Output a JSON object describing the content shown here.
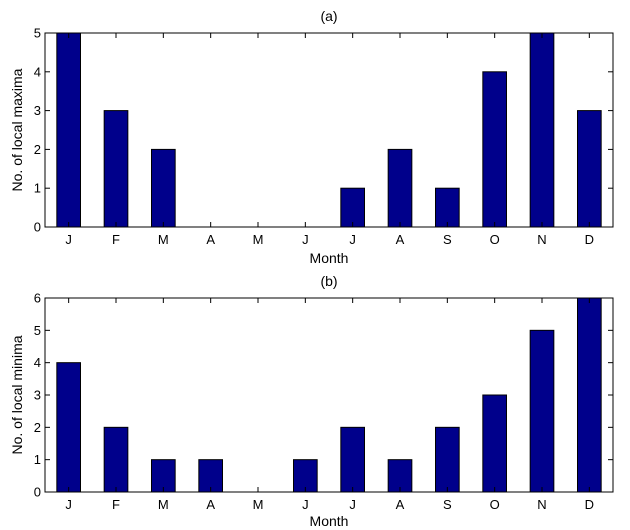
{
  "chart_data": [
    {
      "type": "bar",
      "title": "(a)",
      "xlabel": "Month",
      "ylabel": "No. of local maxima",
      "categories": [
        "J",
        "F",
        "M",
        "A",
        "M",
        "J",
        "J",
        "A",
        "S",
        "O",
        "N",
        "D"
      ],
      "values": [
        5,
        3,
        2,
        0,
        0,
        0,
        1,
        2,
        1,
        4,
        5,
        3
      ],
      "ylim": [
        0,
        5
      ],
      "yticks": [
        0,
        1,
        2,
        3,
        4,
        5
      ],
      "grid": false,
      "legend": "none",
      "bar_color": "#00008B"
    },
    {
      "type": "bar",
      "title": "(b)",
      "xlabel": "Month",
      "ylabel": "No. of local minima",
      "categories": [
        "J",
        "F",
        "M",
        "A",
        "M",
        "J",
        "J",
        "A",
        "S",
        "O",
        "N",
        "D"
      ],
      "values": [
        4,
        2,
        1,
        1,
        0,
        1,
        2,
        1,
        2,
        3,
        5,
        6
      ],
      "ylim": [
        0,
        6
      ],
      "yticks": [
        0,
        1,
        2,
        3,
        4,
        5,
        6
      ],
      "grid": false,
      "legend": "none",
      "bar_color": "#00008B"
    }
  ]
}
